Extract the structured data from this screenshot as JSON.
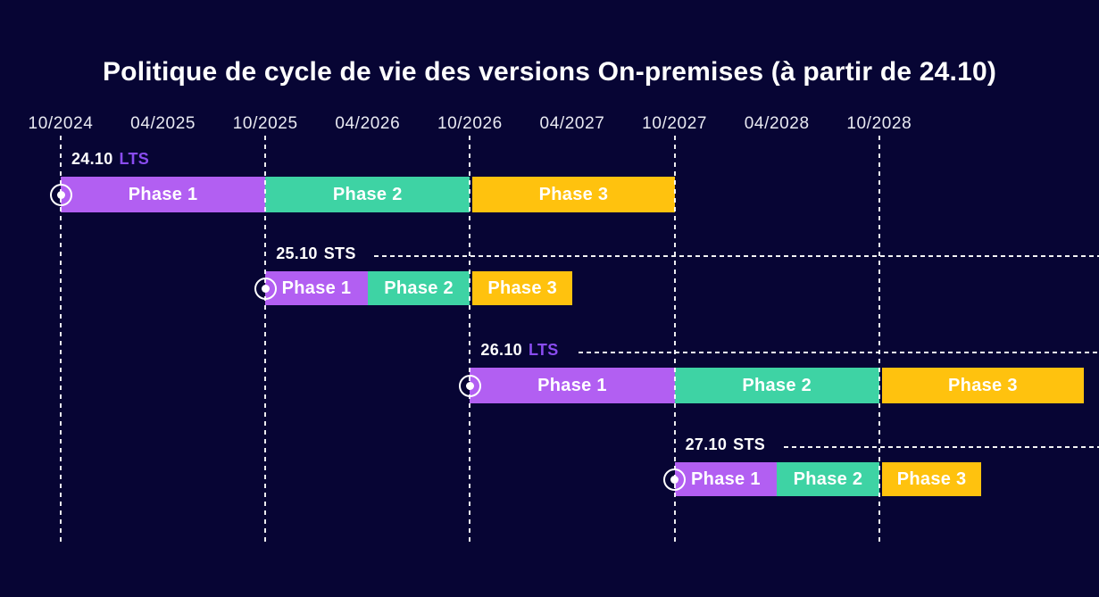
{
  "chart_data": {
    "type": "gantt",
    "title": "Politique de cycle de vie des versions On-premises (à partir de 24.10)",
    "x_axis": {
      "tick_labels": [
        "10/2024",
        "04/2025",
        "10/2025",
        "04/2026",
        "10/2026",
        "04/2027",
        "10/2027",
        "04/2028",
        "10/2028"
      ],
      "gridline_ticks": [
        "10/2024",
        "10/2025",
        "10/2026",
        "10/2027",
        "10/2028"
      ]
    },
    "colors": {
      "background": "#070534",
      "phase1": "#b25ff2",
      "phase2": "#3ed3a4",
      "phase3": "#ffc20e",
      "lts_label": "#8a4cf0",
      "sts_label": "#ffffff",
      "text": "#ffffff",
      "gridline": "#ffffff"
    },
    "rows": [
      {
        "version": "24.10",
        "channel": "LTS",
        "leader_line": false,
        "phases": [
          {
            "label": "Phase 1",
            "start": "10/2024",
            "end": "10/2025",
            "color_key": "phase1"
          },
          {
            "label": "Phase 2",
            "start": "10/2025",
            "end": "10/2026",
            "color_key": "phase2"
          },
          {
            "label": "Phase 3",
            "start": "10/2026",
            "end": "10/2027",
            "color_key": "phase3"
          }
        ]
      },
      {
        "version": "25.10",
        "channel": "STS",
        "leader_line": true,
        "phases": [
          {
            "label": "Phase 1",
            "start": "10/2025",
            "end": "04/2026",
            "color_key": "phase1"
          },
          {
            "label": "Phase 2",
            "start": "04/2026",
            "end": "10/2026",
            "color_key": "phase2"
          },
          {
            "label": "Phase 3",
            "start": "10/2026",
            "end": "04/2027",
            "color_key": "phase3"
          }
        ]
      },
      {
        "version": "26.10",
        "channel": "LTS",
        "leader_line": true,
        "phases": [
          {
            "label": "Phase 1",
            "start": "10/2026",
            "end": "10/2027",
            "color_key": "phase1"
          },
          {
            "label": "Phase 2",
            "start": "10/2027",
            "end": "10/2028",
            "color_key": "phase2"
          },
          {
            "label": "Phase 3",
            "start": "10/2028",
            "end": "10/2029",
            "color_key": "phase3"
          }
        ]
      },
      {
        "version": "27.10",
        "channel": "STS",
        "leader_line": true,
        "phases": [
          {
            "label": "Phase 1",
            "start": "10/2027",
            "end": "04/2028",
            "color_key": "phase1"
          },
          {
            "label": "Phase 2",
            "start": "04/2028",
            "end": "10/2028",
            "color_key": "phase2"
          },
          {
            "label": "Phase 3",
            "start": "10/2028",
            "end": "04/2029",
            "color_key": "phase3"
          }
        ]
      }
    ]
  }
}
